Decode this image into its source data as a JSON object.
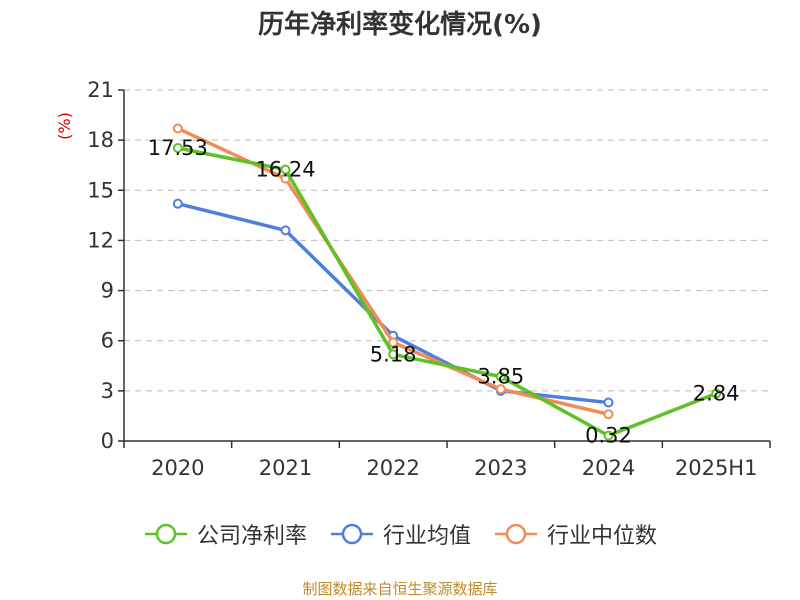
{
  "title": "历年净利率变化情况(%)",
  "unit_label": "(%)",
  "source": "制图数据来自恒生聚源数据库",
  "chart_data": {
    "type": "line",
    "categories": [
      "2020",
      "2021",
      "2022",
      "2023",
      "2024",
      "2025H1"
    ],
    "ylim": [
      0,
      21
    ],
    "yticks": [
      0,
      3,
      6,
      9,
      12,
      15,
      18,
      21
    ],
    "grid": true,
    "legend_position": "bottom",
    "series": [
      {
        "name": "公司净利率",
        "color": "#5ec225",
        "values": [
          17.53,
          16.24,
          5.18,
          3.85,
          0.32,
          2.84
        ],
        "labels": [
          "17.53",
          "16.24",
          "5.18",
          "3.85",
          "0.32",
          "2.84"
        ]
      },
      {
        "name": "行业均值",
        "color": "#4f7fdc",
        "values": [
          14.2,
          12.6,
          6.3,
          3.0,
          2.3,
          null
        ]
      },
      {
        "name": "行业中位数",
        "color": "#f28b54",
        "values": [
          18.7,
          15.7,
          5.9,
          3.1,
          1.6,
          null
        ]
      }
    ]
  }
}
